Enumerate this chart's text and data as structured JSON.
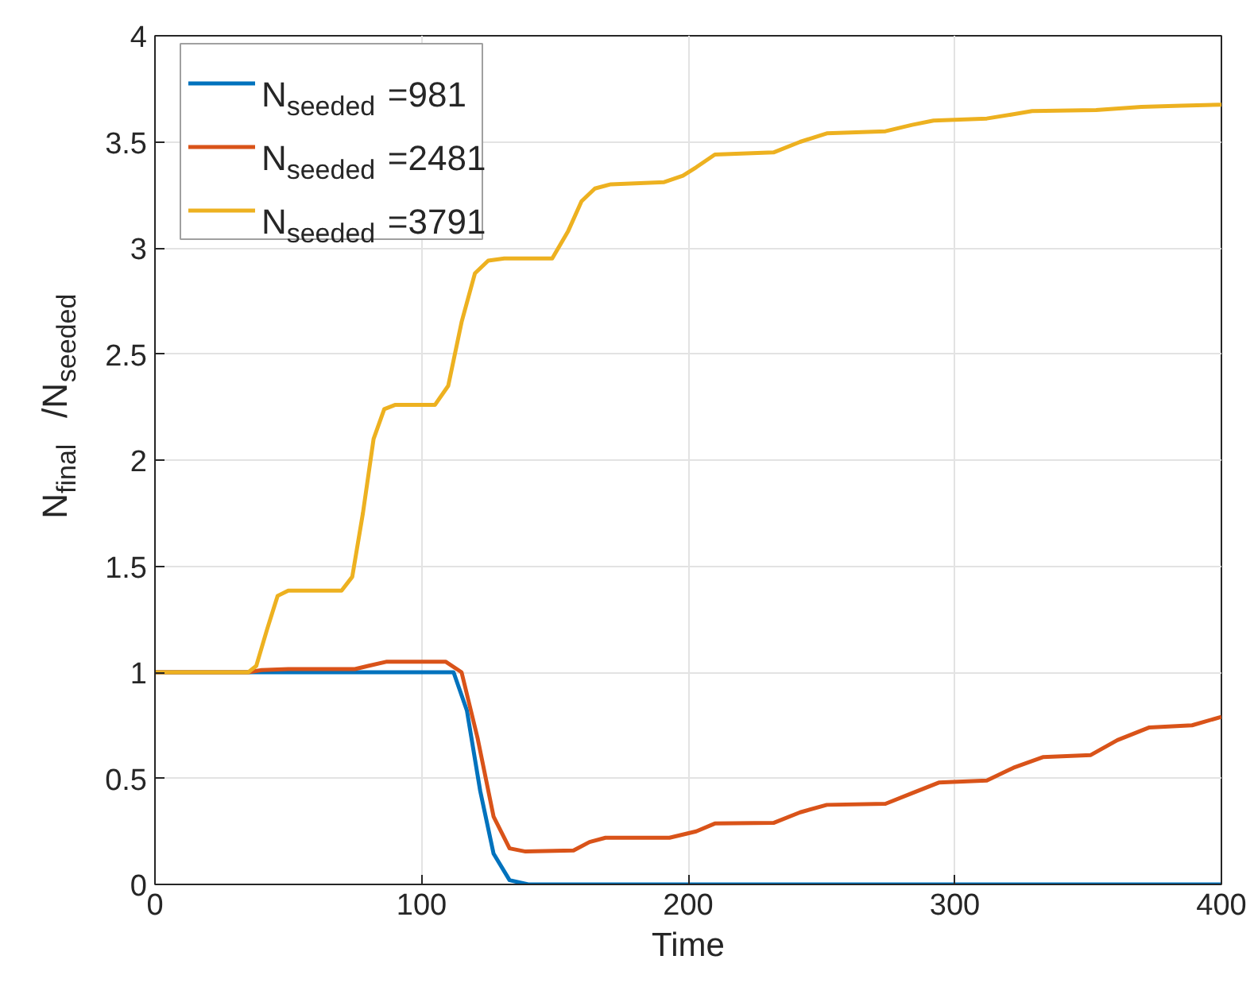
{
  "chart_data": {
    "type": "line",
    "xlabel": "Time",
    "ylabel": "N$_{final}$/N$_{seeded}$",
    "xlim": [
      0,
      400
    ],
    "ylim": [
      0,
      4
    ],
    "xticks": [
      0,
      100,
      200,
      300,
      400
    ],
    "yticks": [
      0,
      0.5,
      1,
      1.5,
      2,
      2.5,
      3,
      3.5,
      4
    ],
    "grid": true,
    "legend": "top left",
    "line_style": "solid",
    "marker": "none",
    "series": [
      {
        "name": "N$_{seeded}$ =981",
        "color": "#0072bd",
        "x": [
          0,
          50,
          100,
          112,
          117,
          122,
          127,
          133,
          140,
          200,
          300,
          400
        ],
        "values": [
          1,
          1,
          1,
          1,
          0.82,
          0.44,
          0.145,
          0.02,
          0,
          0,
          0,
          0
        ]
      },
      {
        "name": "N$_{seeded}$ =2481",
        "color": "#d95319",
        "x": [
          0,
          35,
          40,
          50,
          75,
          80,
          87,
          100,
          109,
          115,
          121,
          127,
          133,
          139,
          157,
          163,
          169,
          193,
          203,
          210,
          232,
          242,
          252,
          274,
          284,
          294,
          312,
          322,
          333,
          351,
          361,
          373,
          389,
          400
        ],
        "values": [
          1,
          1,
          1.01,
          1.015,
          1.015,
          1.03,
          1.05,
          1.05,
          1.05,
          1.0,
          0.69,
          0.32,
          0.17,
          0.155,
          0.16,
          0.2,
          0.22,
          0.22,
          0.25,
          0.287,
          0.29,
          0.34,
          0.375,
          0.38,
          0.43,
          0.48,
          0.49,
          0.55,
          0.6,
          0.61,
          0.68,
          0.74,
          0.75,
          0.79
        ]
      },
      {
        "name": "N$_{seeded}$ =3791",
        "color": "#edb120",
        "x": [
          0,
          35,
          38,
          42,
          46,
          50,
          70,
          74,
          78,
          82,
          86,
          90,
          105,
          110,
          115,
          120,
          125,
          131,
          149,
          155,
          160,
          165,
          171,
          191,
          198,
          203,
          210,
          232,
          242,
          252,
          274,
          284,
          292,
          312,
          322,
          329,
          353,
          370,
          385,
          400
        ],
        "values": [
          1,
          1,
          1.03,
          1.2,
          1.36,
          1.385,
          1.385,
          1.45,
          1.75,
          2.1,
          2.24,
          2.26,
          2.26,
          2.35,
          2.65,
          2.88,
          2.94,
          2.95,
          2.95,
          3.08,
          3.22,
          3.28,
          3.3,
          3.31,
          3.34,
          3.38,
          3.44,
          3.45,
          3.5,
          3.54,
          3.55,
          3.58,
          3.6,
          3.61,
          3.63,
          3.645,
          3.65,
          3.665,
          3.67,
          3.675
        ]
      }
    ]
  }
}
